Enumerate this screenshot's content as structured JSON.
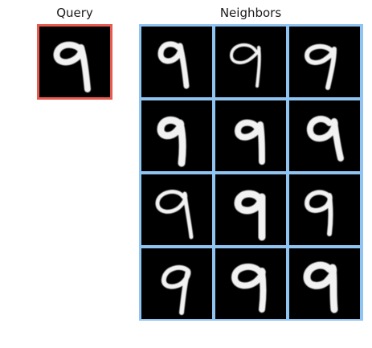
{
  "titles": {
    "query": "Query",
    "neighbors": "Neighbors"
  },
  "colors": {
    "query_border": "#e85a4f",
    "neighbors_border": "#8fc3f0",
    "background": "#000000",
    "digit": "#f2f2f2"
  },
  "query": {
    "digit": "9"
  },
  "neighbors": {
    "rows": 4,
    "cols": 3,
    "digits": [
      "9",
      "9",
      "9",
      "9",
      "9",
      "9",
      "9",
      "9",
      "9",
      "9",
      "9",
      "9"
    ]
  }
}
